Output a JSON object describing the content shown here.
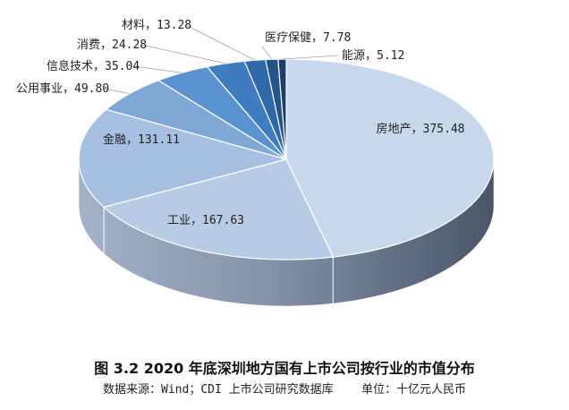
{
  "chart_data": {
    "type": "pie",
    "title": "图 3.2 2020 年底深圳地方国有上市公司按行业的市值分布",
    "source": "数据来源：Wind；CDI 上市公司研究数据库",
    "unit": "单位：十亿元人民币",
    "slices": [
      {
        "label": "房地产",
        "value": 375.48,
        "color": "#c8d8ec"
      },
      {
        "label": "工业",
        "value": 167.63,
        "color": "#b8cbe4"
      },
      {
        "label": "金融",
        "value": 131.11,
        "color": "#a7bfe0"
      },
      {
        "label": "公用事业",
        "value": 49.8,
        "color": "#7fa8d6"
      },
      {
        "label": "信息技术",
        "value": 35.04,
        "color": "#5b92d0"
      },
      {
        "label": "消费",
        "value": 24.28,
        "color": "#3f7dc0"
      },
      {
        "label": "材料",
        "value": 13.28,
        "color": "#2e68a8"
      },
      {
        "label": "医疗保健",
        "value": 7.78,
        "color": "#22538a"
      },
      {
        "label": "能源",
        "value": 5.12,
        "color": "#1a406c"
      }
    ],
    "separator": "，"
  }
}
